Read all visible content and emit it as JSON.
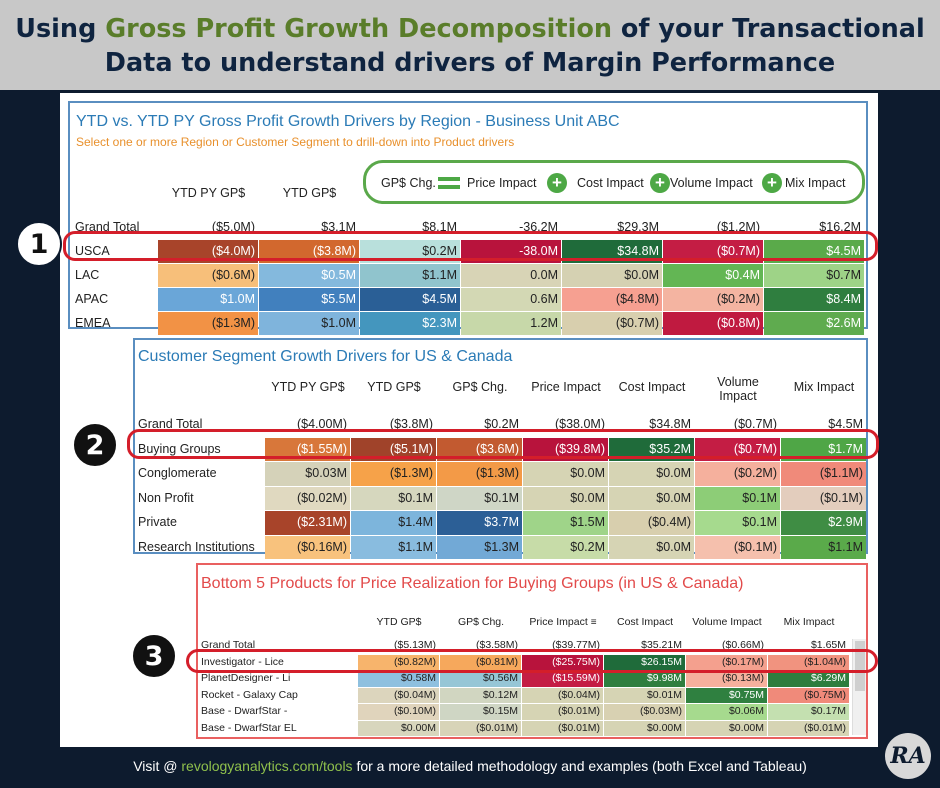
{
  "header": {
    "line1_pre": "Using ",
    "line1_hl": "Gross Profit Growth Decomposition",
    "line1_post": " of your Transactional",
    "line2": "Data to understand drivers of Margin Performance"
  },
  "badges": [
    "1",
    "2",
    "3"
  ],
  "panel1": {
    "title": "YTD vs. YTD PY Gross Profit Growth Drivers by Region -  Business Unit ABC",
    "subtitle": "Select one or more Region or Customer Segment to drill-down into Product drivers",
    "columns": [
      "YTD PY GP$",
      "YTD GP$",
      "GP$ Chg.",
      "Price Impact",
      "Cost Impact",
      "Volume Impact",
      "Mix Impact"
    ],
    "rows": [
      {
        "label": "Grand Total",
        "values": [
          "($5.0M)",
          "$3.1M",
          "$8.1M",
          "-36.2M",
          "$29.3M",
          "($1.2M)",
          "$16.2M"
        ]
      },
      {
        "label": "USCA",
        "values": [
          "($4.0M)",
          "($3.8M)",
          "$0.2M",
          "-38.0M",
          "$34.8M",
          "($0.7M)",
          "$4.5M"
        ]
      },
      {
        "label": "LAC",
        "values": [
          "($0.6M)",
          "$0.5M",
          "$1.1M",
          "0.0M",
          "$0.0M",
          "$0.4M",
          "$0.7M"
        ]
      },
      {
        "label": "APAC",
        "values": [
          "$1.0M",
          "$5.5M",
          "$4.5M",
          "0.6M",
          "($4.8M)",
          "($0.2M)",
          "$8.4M"
        ]
      },
      {
        "label": "EMEA",
        "values": [
          "($1.3M)",
          "$1.0M",
          "$2.3M",
          "1.2M",
          "($0.7M)",
          "($0.8M)",
          "$2.6M"
        ]
      }
    ],
    "colors": [
      [
        null,
        null,
        null,
        null,
        null,
        null,
        null
      ],
      [
        "#a8442a",
        "#d2682e",
        "#b9e0dc",
        "#b8133c",
        "#1f6b3a",
        "#c41d44",
        "#5aaa4a"
      ],
      [
        "#f7bf7a",
        "#84b9dd",
        "#90c4cd",
        "#d8d4b6",
        "#d5d1b2",
        "#63b654",
        "#9ed387"
      ],
      [
        "#6aa6d8",
        "#4180be",
        "#2a5f96",
        "#d3d8b4",
        "#f6a091",
        "#f4b4a1",
        "#2f7e3f"
      ],
      [
        "#f29245",
        "#7fb4dc",
        "#4496be",
        "#c7d8a9",
        "#d8cfae",
        "#c01a40",
        "#5fab4f"
      ]
    ],
    "text_white": [
      [
        false,
        false,
        false,
        false,
        false,
        false,
        false
      ],
      [
        true,
        true,
        false,
        true,
        true,
        true,
        true
      ],
      [
        false,
        true,
        false,
        false,
        false,
        true,
        false
      ],
      [
        true,
        true,
        true,
        false,
        false,
        false,
        true
      ],
      [
        false,
        false,
        true,
        false,
        false,
        true,
        true
      ]
    ]
  },
  "panel2": {
    "title": "Customer Segment Growth Drivers for US & Canada",
    "columns": [
      "YTD PY GP$",
      "YTD GP$",
      "GP$ Chg.",
      "Price Impact",
      "Cost Impact",
      "Volume Impact",
      "Mix Impact"
    ],
    "rows": [
      {
        "label": "Grand Total",
        "values": [
          "($4.00M)",
          "($3.8M)",
          "$0.2M",
          "($38.0M)",
          "$34.8M",
          "($0.7M)",
          "$4.5M"
        ]
      },
      {
        "label": "Buying Groups",
        "values": [
          "($1.55M)",
          "($5.1M)",
          "($3.6M)",
          "($39.8M)",
          "$35.2M",
          "($0.7M)",
          "$1.7M"
        ]
      },
      {
        "label": "Conglomerate",
        "values": [
          "$0.03M",
          "($1.3M)",
          "($1.3M)",
          "$0.0M",
          "$0.0M",
          "($0.2M)",
          "($1.1M)"
        ]
      },
      {
        "label": "Non Profit",
        "values": [
          "($0.02M)",
          "$0.1M",
          "$0.1M",
          "$0.0M",
          "$0.0M",
          "$0.1M",
          "($0.1M)"
        ]
      },
      {
        "label": "Private",
        "values": [
          "($2.31M)",
          "$1.4M",
          "$3.7M",
          "$1.5M",
          "($0.4M)",
          "$0.1M",
          "$2.9M"
        ]
      },
      {
        "label": "Research Institutions",
        "values": [
          "($0.16M)",
          "$1.1M",
          "$1.3M",
          "$0.2M",
          "$0.0M",
          "($0.1M)",
          "$1.1M"
        ]
      }
    ],
    "colors": [
      [
        null,
        null,
        null,
        null,
        null,
        null,
        null
      ],
      [
        "#d8773a",
        "#a0432a",
        "#c25a30",
        "#b8133c",
        "#1f6b3a",
        "#c41d44",
        "#4fa646"
      ],
      [
        "#d5d2b9",
        "#f6a249",
        "#f39a47",
        "#d6d4b4",
        "#d6d4b4",
        "#f5b09d",
        "#f08a7a"
      ],
      [
        "#e0d9c0",
        "#d6d7be",
        "#cfd6c6",
        "#d6d4b4",
        "#d6d4b4",
        "#8dcd77",
        "#e3cdbd"
      ],
      [
        "#a8442a",
        "#7db5dc",
        "#2c5f96",
        "#9fd489",
        "#d8cfae",
        "#a6da8e",
        "#3f8d44"
      ],
      [
        "#f8c27d",
        "#89bcdf",
        "#72a9d6",
        "#c7dca8",
        "#d6d4b4",
        "#f5c0ad",
        "#5aaa4a"
      ]
    ],
    "text_white": [
      [
        false,
        false,
        false,
        false,
        false,
        false,
        false
      ],
      [
        true,
        true,
        true,
        true,
        true,
        true,
        true
      ],
      [
        false,
        false,
        false,
        false,
        false,
        false,
        false
      ],
      [
        false,
        false,
        false,
        false,
        false,
        false,
        false
      ],
      [
        true,
        false,
        true,
        false,
        false,
        false,
        true
      ],
      [
        false,
        false,
        false,
        false,
        false,
        false,
        false
      ]
    ]
  },
  "panel3": {
    "title": "Bottom 5 Products for Price Realization for Buying Groups (in US & Canada)",
    "columns": [
      "YTD GP$",
      "GP$ Chg.",
      "Price Impact",
      "Cost Impact",
      "Volume Impact",
      "Mix Impact"
    ],
    "rows": [
      {
        "label": "Grand Total",
        "values": [
          "($5.13M)",
          "($3.58M)",
          "($39.77M)",
          "$35.21M",
          "($0.66M)",
          "$1.65M"
        ]
      },
      {
        "label": "Investigator - Lice",
        "values": [
          "($0.82M)",
          "($0.81M)",
          "($25.75M)",
          "$26.15M",
          "($0.17M)",
          "($1.04M)"
        ]
      },
      {
        "label": "PlanetDesigner - Li",
        "values": [
          "$0.58M",
          "$0.56M",
          "($15.59M)",
          "$9.98M",
          "($0.13M)",
          "$6.29M"
        ]
      },
      {
        "label": "Rocket - Galaxy Cap",
        "values": [
          "($0.04M)",
          "$0.12M",
          "($0.04M)",
          "$0.01M",
          "$0.75M",
          "($0.75M)"
        ]
      },
      {
        "label": "Base - DwarfStar -",
        "values": [
          "($0.10M)",
          "$0.15M",
          "($0.01M)",
          "($0.03M)",
          "$0.06M",
          "$0.17M"
        ]
      },
      {
        "label": "Base - DwarfStar EL",
        "values": [
          "$0.00M",
          "($0.01M)",
          "($0.01M)",
          "$0.00M",
          "$0.00M",
          "($0.01M)"
        ]
      }
    ],
    "colors": [
      [
        null,
        null,
        null,
        null,
        null,
        null
      ],
      [
        "#f7b46c",
        "#f6a85c",
        "#b8133c",
        "#1f6b3a",
        "#f4a08e",
        "#f1937f"
      ],
      [
        "#8ec0df",
        "#96c6d6",
        "#c41d44",
        "#2f7e3f",
        "#f5b09d",
        "#2d7d3e"
      ],
      [
        "#dcd5bd",
        "#d1d6c1",
        "#d6d4b4",
        "#d6d4b4",
        "#2f8040",
        "#f08a7a"
      ],
      [
        "#e0d4bc",
        "#cfd6c4",
        "#d6d4b4",
        "#d8d1b2",
        "#a6da8e",
        "#c4e0b0"
      ],
      [
        "#d8d6bd",
        "#d8d4b8",
        "#d6d4b4",
        "#d6d4b4",
        "#d6d4b4",
        "#d6d4b4"
      ]
    ],
    "text_white": [
      [
        false,
        false,
        false,
        false,
        false,
        false
      ],
      [
        false,
        false,
        true,
        true,
        false,
        false
      ],
      [
        false,
        false,
        true,
        true,
        false,
        true
      ],
      [
        false,
        false,
        false,
        false,
        true,
        false
      ],
      [
        false,
        false,
        false,
        false,
        false,
        false
      ],
      [
        false,
        false,
        false,
        false,
        false,
        false
      ]
    ]
  },
  "footer": {
    "pre": "Visit @ ",
    "link": "revologyanalytics.com/tools",
    "post": " for a more detailed methodology and examples (both Excel and Tableau)"
  },
  "logo_text": "RA"
}
